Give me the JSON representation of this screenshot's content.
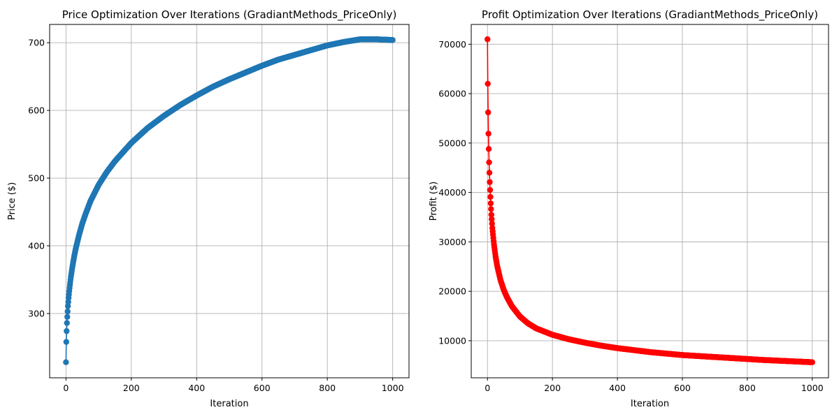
{
  "colors": {
    "price_series": "#1f77b4",
    "profit_series": "#ff0000",
    "grid": "#b0b0b0",
    "axes": "#000000"
  },
  "chart_data": [
    {
      "type": "line",
      "markers": "circle",
      "title": "Price Optimization Over Iterations (GradiantMethods_PriceOnly)",
      "xlabel": "Iteration",
      "ylabel": "Price ($)",
      "xlim": [
        -50,
        1050
      ],
      "ylim": [
        205,
        727
      ],
      "grid": true,
      "legend": "none",
      "xticks": [
        0,
        200,
        400,
        600,
        800,
        1000
      ],
      "xtick_labels": [
        "0",
        "200",
        "400",
        "600",
        "800",
        "1000"
      ],
      "yticks": [
        300,
        400,
        500,
        600,
        700
      ],
      "ytick_labels": [
        "300",
        "400",
        "500",
        "600",
        "700"
      ],
      "series": [
        {
          "color": "#1f77b4",
          "x": [
            0,
            1,
            2,
            3,
            4,
            5,
            6,
            7,
            8,
            9,
            10,
            12,
            15,
            20,
            25,
            30,
            40,
            50,
            60,
            75,
            100,
            125,
            150,
            200,
            250,
            300,
            350,
            400,
            450,
            500,
            550,
            600,
            650,
            700,
            750,
            800,
            850,
            900,
            950,
            1000
          ],
          "y": [
            228,
            258,
            274,
            286,
            295,
            303,
            311,
            317,
            323,
            328,
            333,
            342,
            354,
            370,
            384,
            396,
            416,
            433,
            447,
            466,
            490,
            509,
            525,
            552,
            574,
            592,
            608,
            622,
            635,
            646,
            656,
            666,
            675,
            682,
            689,
            696,
            701,
            705,
            705,
            704
          ]
        }
      ]
    },
    {
      "type": "line",
      "markers": "circle",
      "title": "Profit Optimization Over Iterations (GradiantMethods_PriceOnly)",
      "xlabel": "Iteration",
      "ylabel": "Profit ($)",
      "xlim": [
        -50,
        1050
      ],
      "ylim": [
        2500,
        74000
      ],
      "grid": true,
      "legend": "none",
      "xticks": [
        0,
        200,
        400,
        600,
        800,
        1000
      ],
      "xtick_labels": [
        "0",
        "200",
        "400",
        "600",
        "800",
        "1000"
      ],
      "yticks": [
        10000,
        20000,
        30000,
        40000,
        50000,
        60000,
        70000
      ],
      "ytick_labels": [
        "10000",
        "20000",
        "30000",
        "40000",
        "50000",
        "60000",
        "70000"
      ],
      "series": [
        {
          "color": "#ff0000",
          "x": [
            0,
            1,
            2,
            3,
            4,
            5,
            6,
            7,
            8,
            9,
            10,
            12,
            15,
            20,
            25,
            30,
            40,
            50,
            60,
            75,
            100,
            125,
            150,
            200,
            250,
            300,
            350,
            400,
            450,
            500,
            550,
            600,
            650,
            700,
            750,
            800,
            850,
            900,
            950,
            1000
          ],
          "y": [
            71000,
            62000,
            56200,
            51900,
            48800,
            46100,
            44000,
            42100,
            40500,
            39100,
            37800,
            35500,
            32800,
            29500,
            27000,
            25100,
            22300,
            20300,
            18800,
            17000,
            14900,
            13500,
            12500,
            11200,
            10300,
            9600,
            9000,
            8500,
            8100,
            7700,
            7400,
            7100,
            6900,
            6700,
            6500,
            6300,
            6100,
            5950,
            5800,
            5650
          ]
        }
      ]
    }
  ]
}
